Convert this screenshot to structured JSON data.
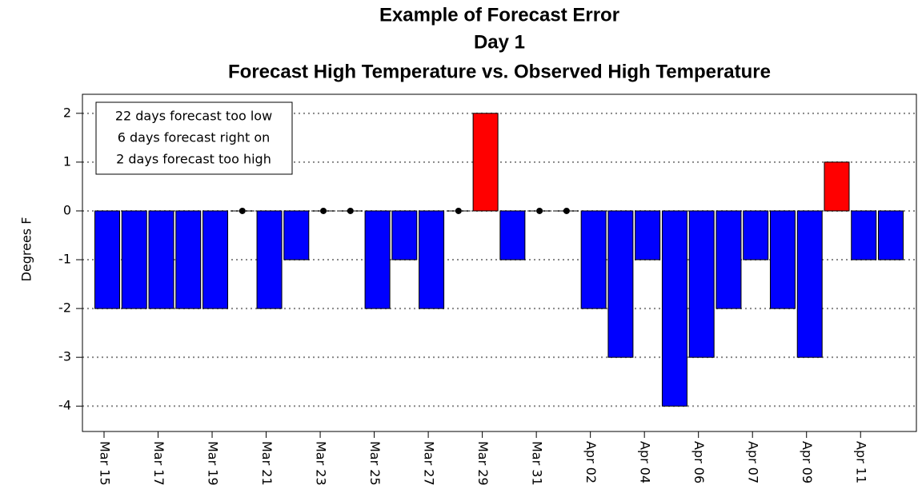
{
  "chart_data": {
    "type": "bar",
    "title": [
      "Example of Forecast Error",
      "Day 1",
      "Forecast High Temperature vs. Observed High Temperature"
    ],
    "ylabel": "Degrees F",
    "annotation": [
      "22 days forecast too low",
      "6 days forecast right on",
      "2 days forecast too high"
    ],
    "categories": [
      "Mar 15",
      null,
      "Mar 17",
      null,
      "Mar 19",
      null,
      "Mar 21",
      null,
      "Mar 23",
      null,
      "Mar 25",
      null,
      "Mar 27",
      null,
      "Mar 29",
      null,
      "Mar 31",
      null,
      "Apr 02",
      null,
      "Apr 04",
      null,
      "Apr 06",
      null,
      "Apr 07",
      null,
      "Apr 09",
      null,
      "Apr 11",
      null
    ],
    "values": [
      -2,
      -2,
      -2,
      -2,
      -2,
      0,
      -2,
      -1,
      0,
      0,
      -2,
      -1,
      -2,
      0,
      2,
      -1,
      0,
      0,
      -2,
      -3,
      -1,
      -4,
      -3,
      -2,
      -1,
      -2,
      -3,
      1,
      -1,
      -1
    ],
    "colors": {
      "negative": "#0000ff",
      "positive": "#ff0000",
      "zero": "#000000"
    },
    "ylim": [
      -4.52,
      2.39
    ],
    "yticks": [
      -4,
      -3,
      -2,
      -1,
      0,
      1,
      2
    ],
    "grid": true
  }
}
